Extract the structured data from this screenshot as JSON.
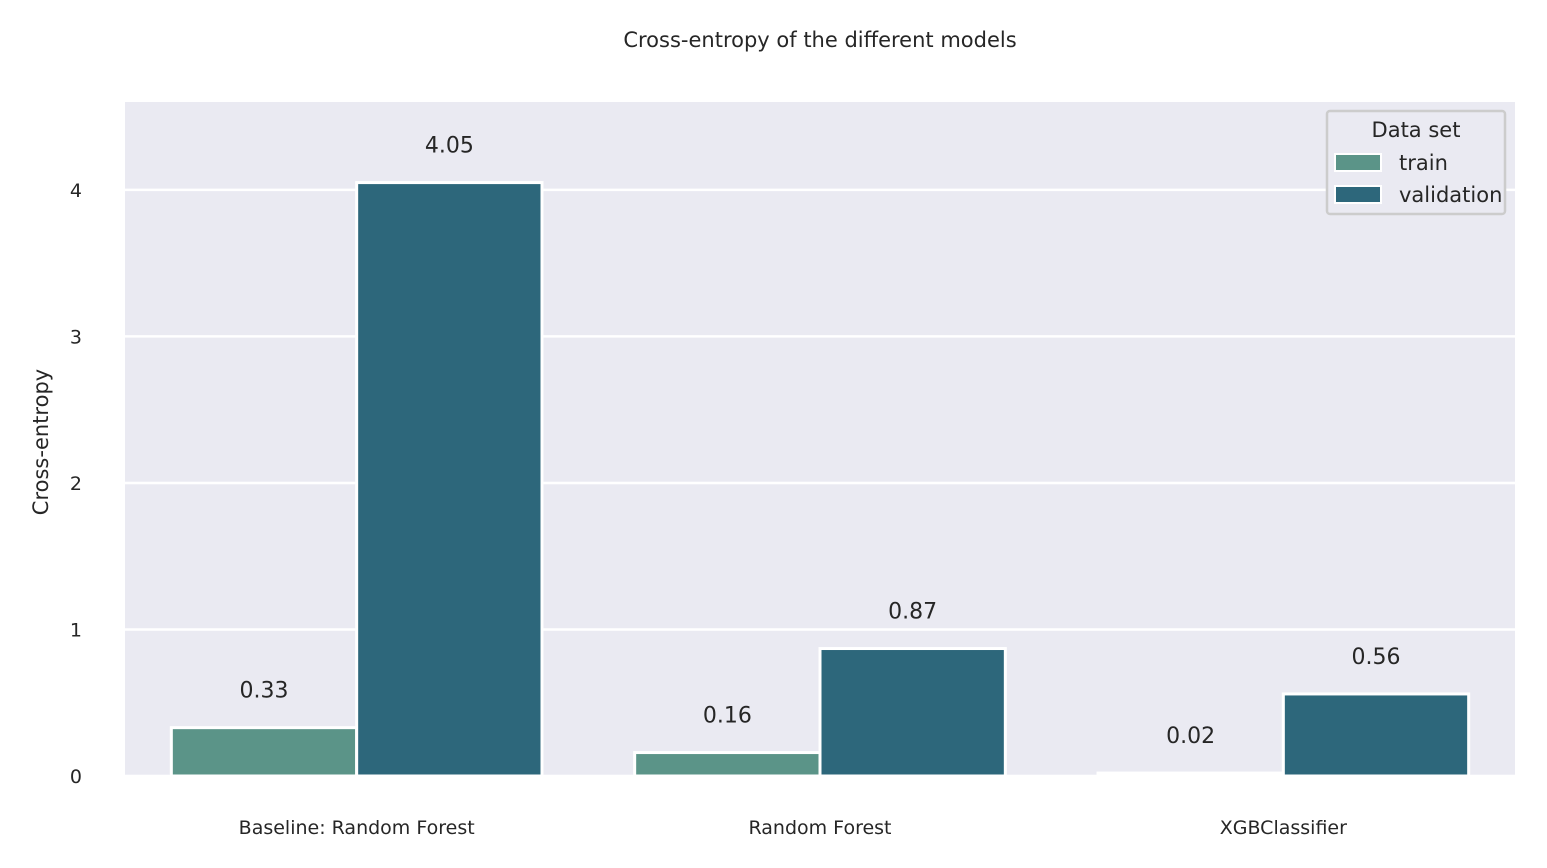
{
  "chart_data": {
    "type": "bar",
    "title": "Cross-entropy of the different models",
    "xlabel": "",
    "ylabel": "Cross-entropy",
    "categories": [
      "Baseline: Random Forest",
      "Random Forest",
      "XGBClassifier"
    ],
    "series": [
      {
        "name": "train",
        "values": [
          0.33,
          0.16,
          0.02
        ],
        "labels": [
          "0.33",
          "0.16",
          "0.02"
        ],
        "color": "#5b9488"
      },
      {
        "name": "validation",
        "values": [
          4.05,
          0.87,
          0.56
        ],
        "labels": [
          "4.05",
          "0.87",
          "0.56"
        ],
        "color": "#2d677b"
      }
    ],
    "ylim": [
      0,
      4.6
    ],
    "yticks": [
      "0",
      "1",
      "2",
      "3",
      "4"
    ],
    "grid": true,
    "legend": {
      "title": "Data set",
      "position": "top-right"
    },
    "background_color": "#eaeaf2"
  }
}
